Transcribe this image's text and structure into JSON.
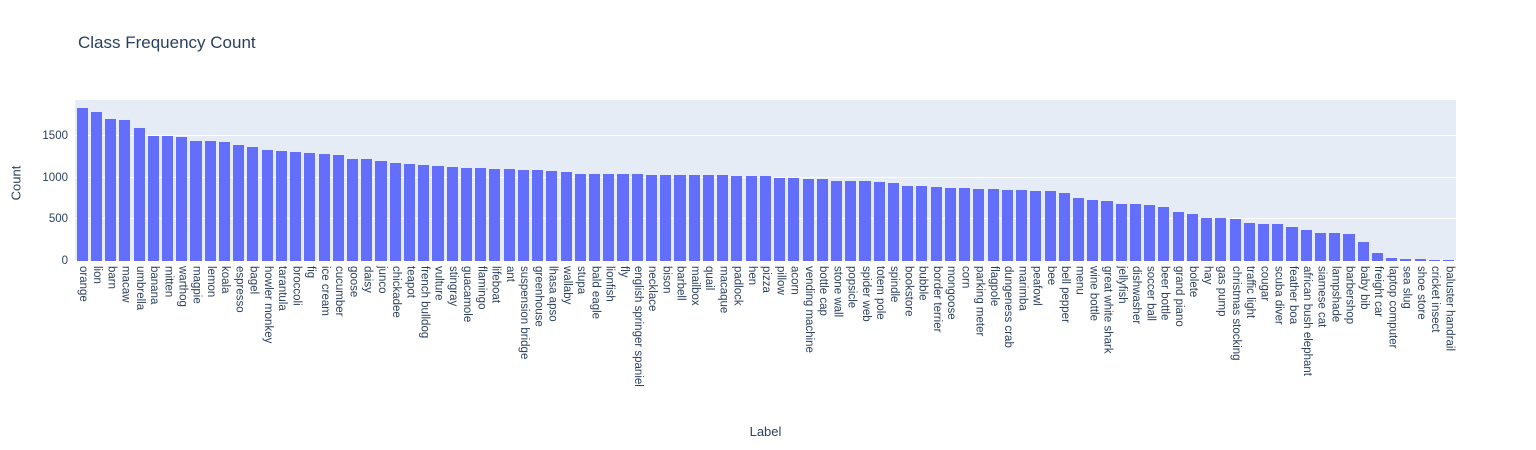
{
  "title": "Class Frequency Count",
  "axes": {
    "x_label": "Label",
    "y_label": "Count",
    "y_ticks": [
      0,
      500,
      1000,
      1500
    ]
  },
  "colors": {
    "bar": "#636efa",
    "plot_background": "#e5ecf6",
    "grid": "#ffffff",
    "text": "#2a3f5f"
  },
  "chart_data": {
    "type": "bar",
    "title": "Class Frequency Count",
    "xlabel": "Label",
    "ylabel": "Count",
    "ylim": [
      0,
      1930
    ],
    "grid": true,
    "legend": false,
    "categories": [
      "orange",
      "lion",
      "barn",
      "macaw",
      "umbrella",
      "banana",
      "mitten",
      "warthog",
      "magpie",
      "lemon",
      "koala",
      "espresso",
      "bagel",
      "howler monkey",
      "tarantula",
      "broccoli",
      "fig",
      "ice cream",
      "cucumber",
      "goose",
      "daisy",
      "junco",
      "chickadee",
      "teapot",
      "french bulldog",
      "vulture",
      "stingray",
      "guacamole",
      "flamingo",
      "lifeboat",
      "ant",
      "suspension bridge",
      "greenhouse",
      "lhasa apso",
      "wallaby",
      "stupa",
      "bald eagle",
      "lionfish",
      "fly",
      "english springer spaniel",
      "necklace",
      "bison",
      "barbell",
      "mailbox",
      "quail",
      "macaque",
      "padlock",
      "hen",
      "pizza",
      "pillow",
      "acorn",
      "vending machine",
      "bottle cap",
      "stone wall",
      "popsicle",
      "spider web",
      "totem pole",
      "spindle",
      "bookstore",
      "bubble",
      "border terrier",
      "mongoose",
      "corn",
      "parking meter",
      "flagpole",
      "dungeness crab",
      "marimba",
      "peafowl",
      "bee",
      "bell pepper",
      "menu",
      "wine bottle",
      "great white shark",
      "jellyfish",
      "dishwasher",
      "soccer ball",
      "beer bottle",
      "grand piano",
      "bolete",
      "hay",
      "gas pump",
      "christmas stocking",
      "traffic light",
      "cougar",
      "scuba diver",
      "feather boa",
      "african bush elephant",
      "siamese cat",
      "lampshade",
      "barbershop",
      "baby bib",
      "freight car",
      "laptop computer",
      "sea slug",
      "shoe store",
      "cricket insect",
      "baluster  handrail"
    ],
    "values": [
      1839,
      1791,
      1703,
      1689,
      1591,
      1502,
      1497,
      1483,
      1437,
      1433,
      1429,
      1395,
      1367,
      1328,
      1324,
      1301,
      1291,
      1281,
      1271,
      1228,
      1217,
      1196,
      1180,
      1162,
      1150,
      1136,
      1127,
      1116,
      1111,
      1105,
      1099,
      1092,
      1087,
      1076,
      1067,
      1049,
      1045,
      1043,
      1040,
      1038,
      1036,
      1034,
      1032,
      1030,
      1028,
      1026,
      1023,
      1019,
      1014,
      997,
      990,
      986,
      981,
      962,
      958,
      954,
      947,
      937,
      905,
      898,
      892,
      880,
      872,
      867,
      862,
      857,
      851,
      845,
      834,
      819,
      750,
      726,
      719,
      686,
      681,
      674,
      645,
      591,
      559,
      521,
      517,
      509,
      451,
      447,
      441,
      403,
      374,
      339,
      332,
      326,
      231,
      91,
      31,
      24,
      21,
      18,
      10
    ]
  }
}
